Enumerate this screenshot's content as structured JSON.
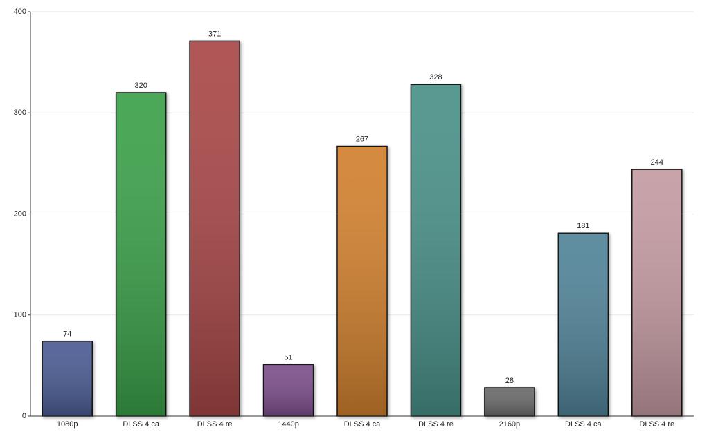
{
  "chart_data": {
    "type": "bar",
    "categories": [
      "1080p",
      "DLSS 4 ca",
      "DLSS 4 re",
      "1440p",
      "DLSS 4 ca",
      "DLSS 4 re",
      "2160p",
      "DLSS 4 ca",
      "DLSS 4 re"
    ],
    "values": [
      74,
      320,
      371,
      51,
      267,
      328,
      28,
      181,
      244
    ],
    "colors": [
      "#4b5b93",
      "#3aa14a",
      "#a94646",
      "#7b4f8b",
      "#d2812f",
      "#4a9189",
      "#6b6b6b",
      "#518499",
      "#c49ba2"
    ],
    "ylim": [
      0,
      400
    ],
    "yticks": [
      0,
      100,
      200,
      300,
      400
    ],
    "grid": true
  }
}
